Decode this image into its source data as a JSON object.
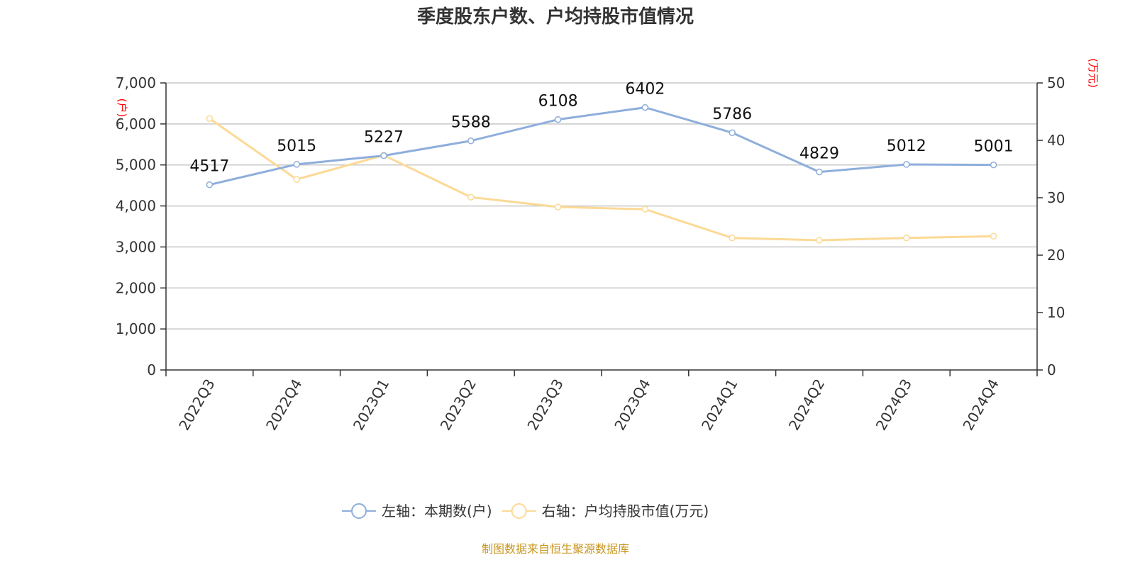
{
  "chart_data": {
    "type": "line",
    "title": "季度股东户数、户均持股市值情况",
    "categories": [
      "2022Q3",
      "2022Q4",
      "2023Q1",
      "2023Q2",
      "2023Q3",
      "2023Q4",
      "2024Q1",
      "2024Q2",
      "2024Q3",
      "2024Q4"
    ],
    "left_axis": {
      "unit": "(户)",
      "ylim": [
        0,
        7000
      ],
      "ticks": [
        "0",
        "1,000",
        "2,000",
        "3,000",
        "4,000",
        "5,000",
        "6,000",
        "7,000"
      ]
    },
    "right_axis": {
      "unit": "(万元)",
      "ylim": [
        0,
        50
      ],
      "ticks": [
        "0",
        "10",
        "20",
        "30",
        "40",
        "50"
      ]
    },
    "grid": true,
    "legend_position": "bottom",
    "series": [
      {
        "name": "左轴：本期数(户)",
        "axis": "left",
        "color": "#8eaedb",
        "values": [
          4517,
          5015,
          5227,
          5588,
          6108,
          6402,
          5786,
          4829,
          5012,
          5001
        ],
        "show_labels": true
      },
      {
        "name": "右轴：户均持股市值(万元)",
        "axis": "right",
        "color": "#fcd995",
        "values": [
          43.8,
          33.2,
          37.4,
          30.1,
          28.4,
          28.0,
          23.0,
          22.6,
          23.0,
          23.3
        ],
        "show_labels": false
      }
    ],
    "source": "制图数据来自恒生聚源数据库"
  }
}
